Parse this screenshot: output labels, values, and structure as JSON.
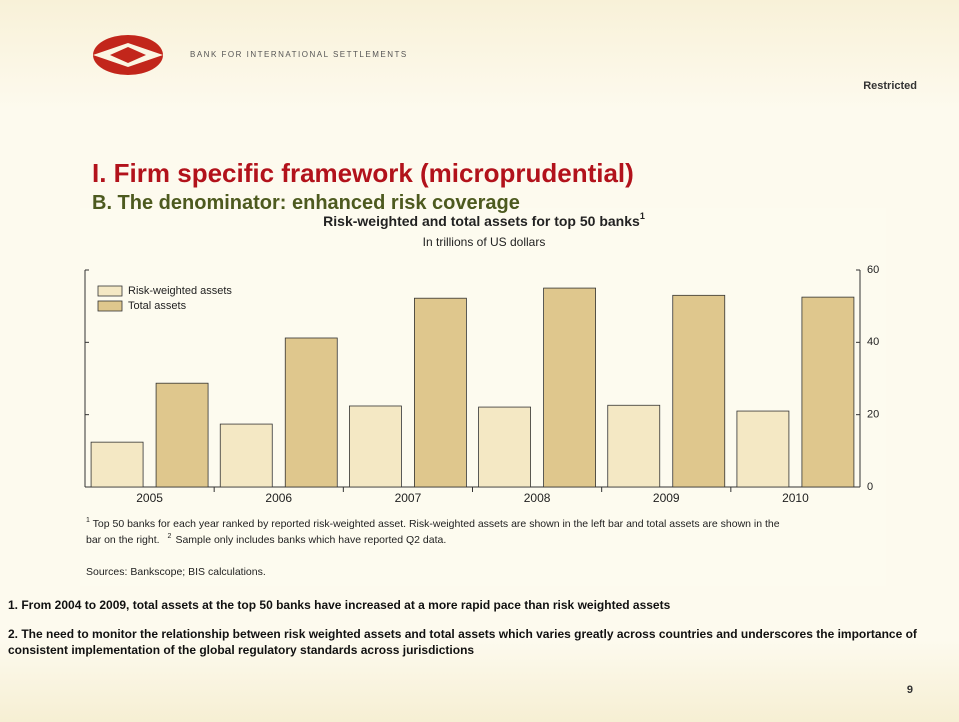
{
  "header": {
    "org": "BANK FOR INTERNATIONAL SETTLEMENTS",
    "classification": "Restricted"
  },
  "slide": {
    "title": "I. Firm specific framework (microprudential)",
    "subtitle": "B. The denominator: enhanced risk coverage"
  },
  "chart_data": {
    "type": "bar",
    "title": "Risk-weighted and total assets for top 50 banks",
    "title_note": "1",
    "subtitle": "In trillions of US dollars",
    "categories": [
      "2005",
      "2006",
      "2007",
      "2008",
      "2009",
      "2010"
    ],
    "series": [
      {
        "name": "Risk-weighted assets",
        "color": "#f4e8c4",
        "values": [
          12.4,
          17.4,
          22.4,
          22.1,
          22.6,
          21
        ]
      },
      {
        "name": "Total assets",
        "color": "#dfc78d",
        "values": [
          28.7,
          41.2,
          52.2,
          55,
          53,
          52.5
        ]
      }
    ],
    "ylim": [
      0,
      60
    ],
    "yticks": [
      0,
      20,
      40,
      60
    ],
    "y_axis_side": "right",
    "legend": "upper left",
    "grid": false,
    "notes": [
      {
        "mark": "1",
        "text": "Top 50 banks for each year ranked by reported risk-weighted asset. Risk-weighted assets are shown in the left bar and total assets are shown in the bar on the right."
      },
      {
        "mark": "2",
        "text": "Sample only includes banks which have reported Q2 data."
      }
    ],
    "source": "Sources: Bankscope; BIS calculations."
  },
  "bullets": [
    "1. From 2004 to 2009, total assets at the top 50 banks have increased at a more rapid pace than risk weighted assets",
    "2. The need to monitor the relationship between risk weighted assets and total assets which varies greatly across countries and underscores the importance of consistent implementation of the global regulatory standards across jurisdictions"
  ],
  "footer": {
    "page": "9"
  }
}
